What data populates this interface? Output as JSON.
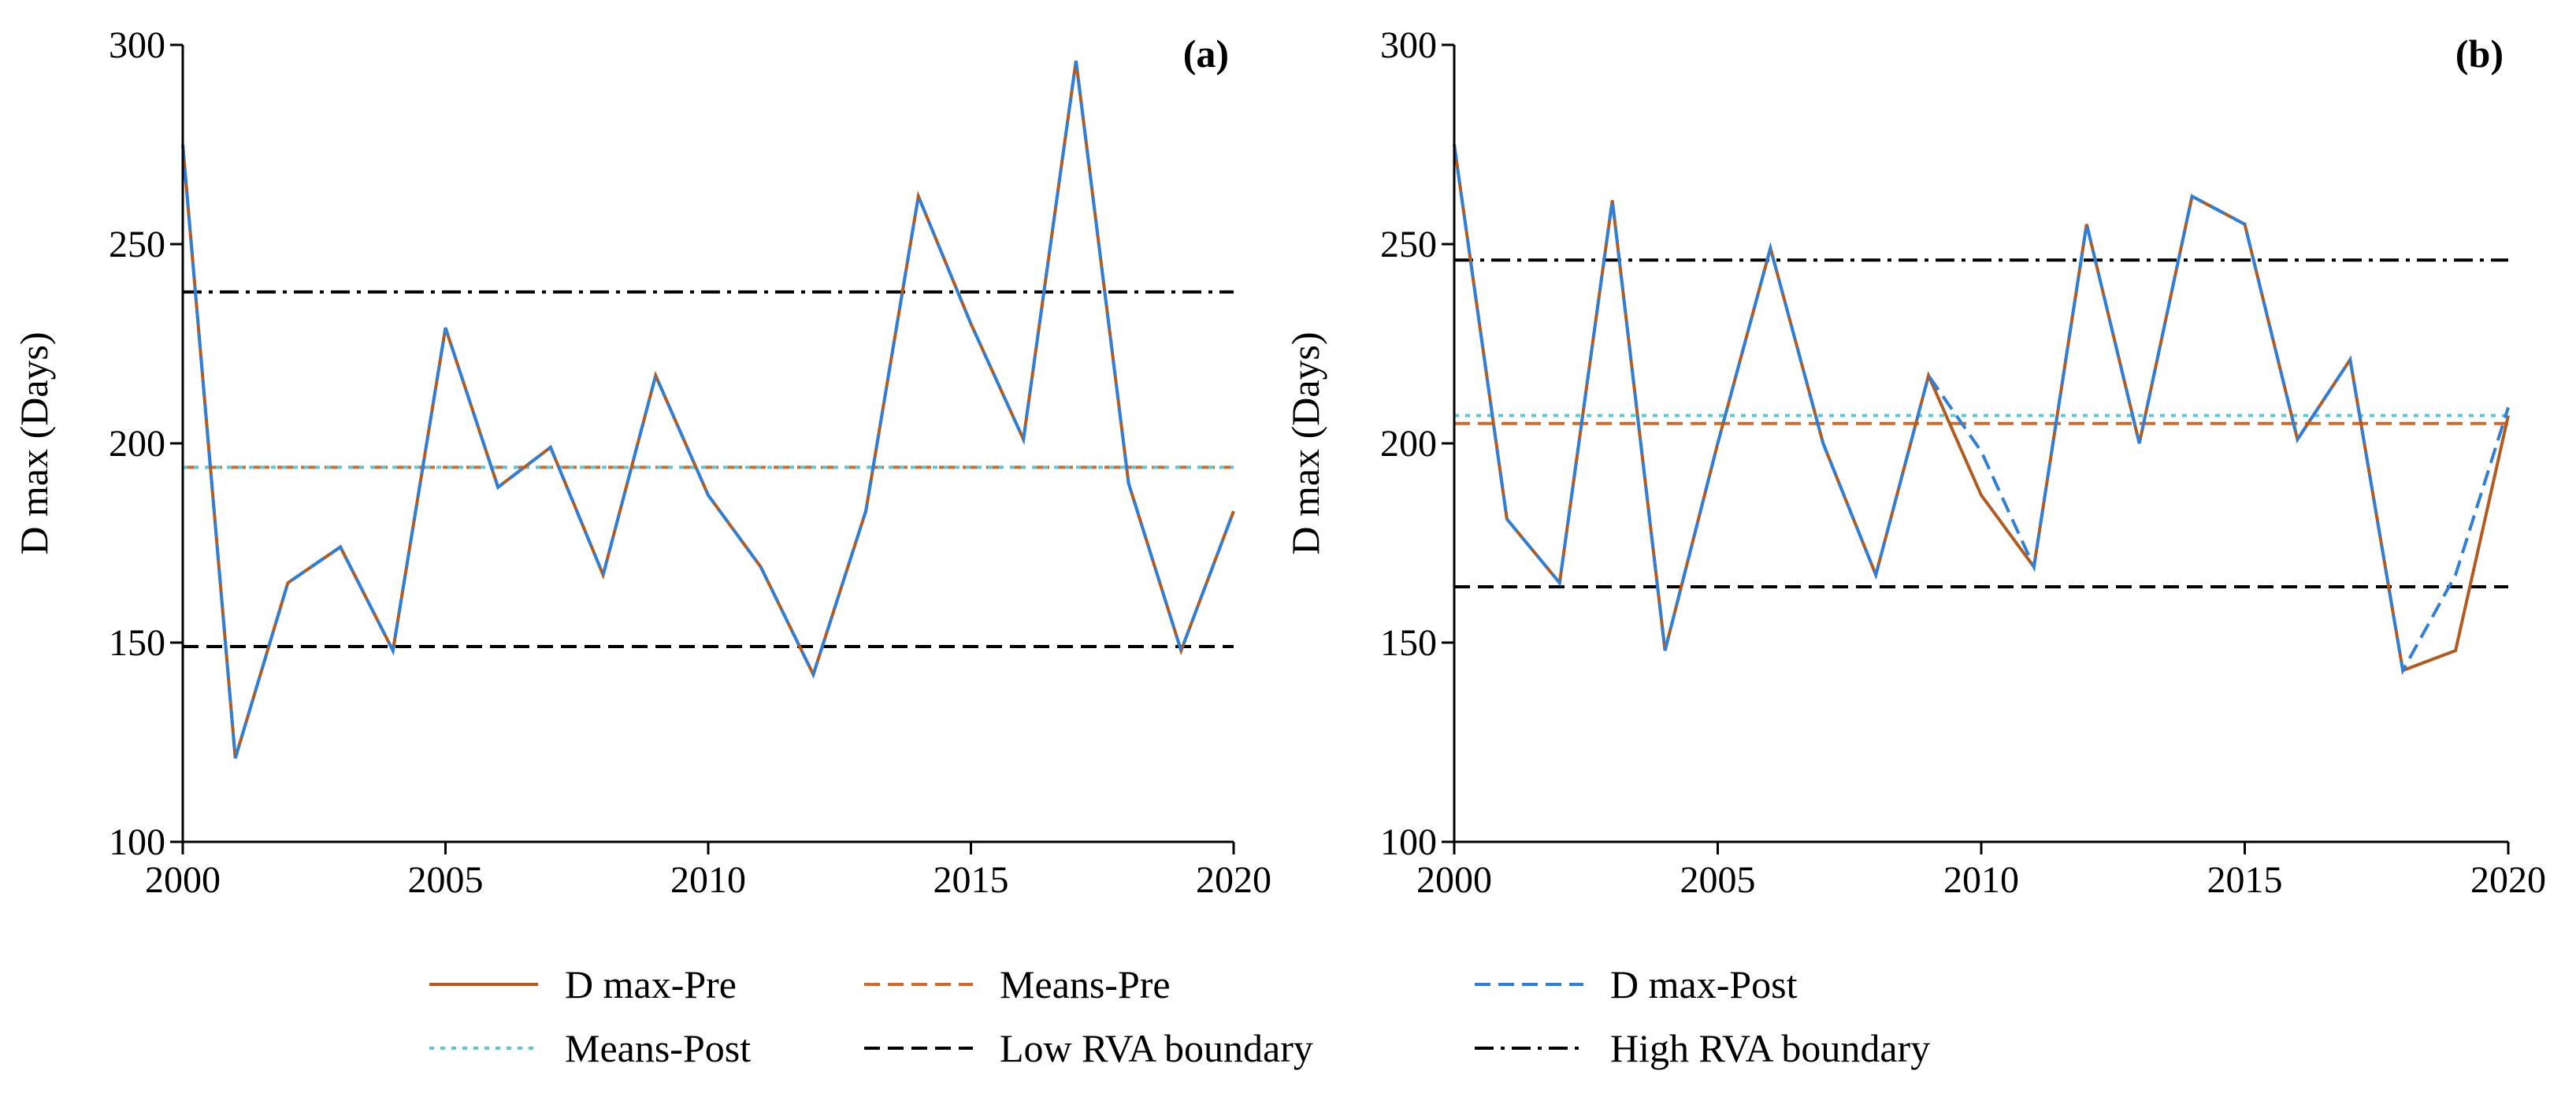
{
  "colors": {
    "dmax_pre": "#b35a1f",
    "means_pre": "#d2692a",
    "dmax_post": "#2f7ed8",
    "means_post": "#5cc8d6",
    "low_rva": "#000000",
    "high_rva": "#000000",
    "axis": "#000000"
  },
  "legend": {
    "items": [
      {
        "key": "dmax_pre",
        "label": "D max-Pre",
        "style": "solid"
      },
      {
        "key": "means_pre",
        "label": "Means-Pre",
        "style": "dashed"
      },
      {
        "key": "dmax_post",
        "label": "D max-Post",
        "style": "dashed"
      },
      {
        "key": "means_post",
        "label": "Means-Post",
        "style": "dotted"
      },
      {
        "key": "low_rva",
        "label": "Low RVA boundary",
        "style": "dashed"
      },
      {
        "key": "high_rva",
        "label": "High RVA boundary",
        "style": "dashdot"
      }
    ]
  },
  "chart_data": [
    {
      "type": "line",
      "panel_label": "(a)",
      "title": "",
      "xlabel": "",
      "ylabel": "D max (Days)",
      "xlim": [
        2000,
        2020
      ],
      "ylim": [
        100,
        300
      ],
      "xticks": [
        2000,
        2005,
        2010,
        2015,
        2020
      ],
      "yticks": [
        100,
        150,
        200,
        250,
        300
      ],
      "grid": false,
      "x": [
        2000,
        2001,
        2002,
        2003,
        2004,
        2005,
        2006,
        2007,
        2008,
        2009,
        2010,
        2011,
        2012,
        2013,
        2014,
        2015,
        2016,
        2017,
        2018,
        2019,
        2020
      ],
      "series": [
        {
          "name": "D max-Pre",
          "key": "dmax_pre",
          "values": [
            275,
            121,
            165,
            174,
            148,
            229,
            189,
            199,
            167,
            217,
            187,
            169,
            142,
            183,
            262,
            230,
            201,
            296,
            190,
            148,
            183
          ]
        },
        {
          "name": "D max-Post",
          "key": "dmax_post",
          "values": [
            275,
            121,
            165,
            174,
            148,
            229,
            189,
            199,
            167,
            217,
            187,
            169,
            142,
            183,
            262,
            230,
            201,
            296,
            190,
            148,
            183
          ]
        }
      ],
      "hlines": [
        {
          "name": "Means-Pre",
          "key": "means_pre",
          "value": 194
        },
        {
          "name": "Means-Post",
          "key": "means_post",
          "value": 194
        },
        {
          "name": "Low RVA boundary",
          "key": "low_rva",
          "value": 149
        },
        {
          "name": "High RVA boundary",
          "key": "high_rva",
          "value": 238
        }
      ]
    },
    {
      "type": "line",
      "panel_label": "(b)",
      "title": "",
      "xlabel": "",
      "ylabel": "D max (Days)",
      "xlim": [
        2000,
        2020
      ],
      "ylim": [
        100,
        300
      ],
      "xticks": [
        2000,
        2005,
        2010,
        2015,
        2020
      ],
      "yticks": [
        100,
        150,
        200,
        250,
        300
      ],
      "grid": false,
      "x": [
        2000,
        2001,
        2002,
        2003,
        2004,
        2005,
        2006,
        2007,
        2008,
        2009,
        2010,
        2011,
        2012,
        2013,
        2014,
        2015,
        2016,
        2017,
        2018,
        2019,
        2020
      ],
      "series": [
        {
          "name": "D max-Pre",
          "key": "dmax_pre",
          "values": [
            275,
            181,
            165,
            261,
            148,
            200,
            249,
            200,
            167,
            217,
            187,
            169,
            255,
            200,
            262,
            255,
            201,
            221,
            143,
            148,
            207
          ]
        },
        {
          "name": "D max-Post",
          "key": "dmax_post",
          "values": [
            275,
            181,
            165,
            261,
            148,
            200,
            249,
            200,
            167,
            217,
            198,
            169,
            255,
            200,
            262,
            255,
            201,
            221,
            143,
            167,
            209
          ]
        }
      ],
      "hlines": [
        {
          "name": "Means-Pre",
          "key": "means_pre",
          "value": 205
        },
        {
          "name": "Means-Post",
          "key": "means_post",
          "value": 207
        },
        {
          "name": "Low RVA boundary",
          "key": "low_rva",
          "value": 164
        },
        {
          "name": "High RVA boundary",
          "key": "high_rva",
          "value": 246
        }
      ]
    }
  ]
}
